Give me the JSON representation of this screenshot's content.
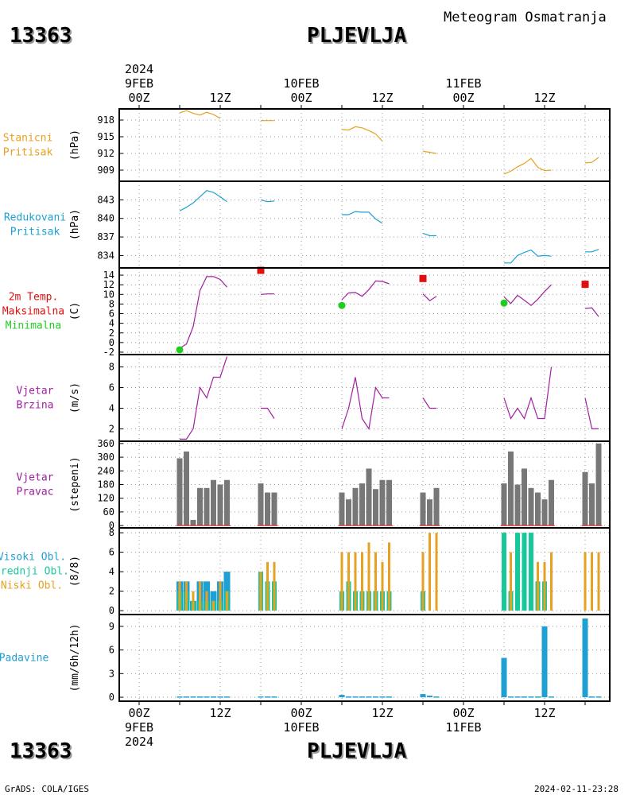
{
  "header": {
    "station_id": "13363",
    "station_name": "PLJEVLJA",
    "subtitle": "Meteogram Osmatranja"
  },
  "footer": {
    "left": "GrADS: COLA/IGES",
    "right": "2024-02-11-23:28"
  },
  "time_axis": {
    "top": {
      "year": "2024",
      "dates": [
        "9FEB",
        "10FEB",
        "11FEB"
      ],
      "hours": [
        "00Z",
        "12Z",
        "00Z",
        "12Z",
        "00Z",
        "12Z"
      ]
    },
    "bottom": {
      "year": "2024",
      "dates": [
        "9FEB",
        "10FEB",
        "11FEB"
      ],
      "hours": [
        "00Z",
        "12Z",
        "00Z",
        "12Z",
        "00Z",
        "12Z"
      ]
    }
  },
  "colors": {
    "orange": "#e6a022",
    "blue": "#1fa0d2",
    "red": "#e01010",
    "green": "#1fcc1f",
    "purple": "#a020a0",
    "gray": "#777777",
    "teal": "#17c99a",
    "frame": "#000000"
  },
  "chart_data": [
    {
      "id": "pressure",
      "type": "line",
      "label_lines": [
        "Stanicni",
        "Pritisak"
      ],
      "unit": "(hPa)",
      "ylim": [
        907,
        920
      ],
      "yticks": [
        909,
        912,
        915,
        918
      ],
      "series": [
        {
          "color": "orange",
          "segments": [
            [
              [
                6,
                919.3
              ],
              [
                7,
                919.7
              ],
              [
                8,
                919.2
              ],
              [
                9,
                918.9
              ],
              [
                10,
                919.4
              ],
              [
                11,
                919.0
              ],
              [
                12,
                918.3
              ]
            ],
            [
              [
                18,
                917.9
              ],
              [
                20,
                917.9
              ]
            ],
            [
              [
                30,
                916.3
              ],
              [
                31,
                916.2
              ],
              [
                32,
                916.8
              ],
              [
                33,
                916.6
              ],
              [
                34,
                916.1
              ],
              [
                35,
                915.5
              ],
              [
                36,
                914.2
              ]
            ],
            [
              [
                42,
                912.4
              ],
              [
                43,
                912.2
              ],
              [
                44,
                912.0
              ]
            ],
            [
              [
                54,
                908.3
              ],
              [
                55,
                908.8
              ],
              [
                56,
                909.6
              ],
              [
                57,
                910.2
              ],
              [
                58,
                911.1
              ],
              [
                59,
                909.5
              ],
              [
                60,
                908.9
              ],
              [
                61,
                909.0
              ]
            ],
            [
              [
                66,
                910.3
              ],
              [
                67,
                910.4
              ],
              [
                68,
                911.3
              ]
            ]
          ]
        }
      ]
    },
    {
      "id": "reduced_pressure",
      "type": "line",
      "label_lines": [
        "Redukovani",
        "Pritisak"
      ],
      "unit": "(hPa)",
      "ylim": [
        832,
        846
      ],
      "yticks": [
        834,
        837,
        840,
        843
      ],
      "series": [
        {
          "color": "blue",
          "segments": [
            [
              [
                6,
                841.2
              ],
              [
                7,
                841.8
              ],
              [
                8,
                842.5
              ],
              [
                10,
                844.5
              ],
              [
                11,
                844.2
              ],
              [
                12,
                843.5
              ],
              [
                13,
                842.7
              ]
            ],
            [
              [
                18,
                843.0
              ],
              [
                19,
                842.7
              ],
              [
                20,
                842.8
              ]
            ],
            [
              [
                30,
                840.6
              ],
              [
                31,
                840.6
              ],
              [
                32,
                841.1
              ],
              [
                33,
                841.0
              ],
              [
                34,
                841.0
              ],
              [
                35,
                839.9
              ],
              [
                36,
                839.2
              ]
            ],
            [
              [
                42,
                837.6
              ],
              [
                43,
                837.2
              ],
              [
                44,
                837.2
              ]
            ],
            [
              [
                54,
                832.8
              ],
              [
                55,
                832.8
              ],
              [
                56,
                834.0
              ],
              [
                57,
                834.5
              ],
              [
                58,
                834.9
              ],
              [
                59,
                833.9
              ],
              [
                60,
                834.0
              ],
              [
                61,
                833.9
              ]
            ],
            [
              [
                66,
                834.6
              ],
              [
                67,
                834.6
              ],
              [
                68,
                835.0
              ]
            ]
          ]
        }
      ]
    },
    {
      "id": "temperature",
      "type": "line",
      "label_lines": [
        "2m Temp.",
        "Maksimalna",
        "Minimalna"
      ],
      "label_colors": [
        "red",
        "red",
        "green"
      ],
      "unit": "(C)",
      "ylim": [
        -2.5,
        15.5
      ],
      "yticks": [
        -2,
        0,
        2,
        4,
        6,
        8,
        10,
        12,
        14
      ],
      "series": [
        {
          "color": "purple",
          "segments": [
            [
              [
                6,
                -1.2
              ],
              [
                7,
                -0.3
              ],
              [
                8,
                3.3
              ],
              [
                9,
                10.8
              ],
              [
                10,
                13.7
              ],
              [
                11,
                13.7
              ],
              [
                12,
                13.1
              ],
              [
                13,
                11.5
              ]
            ],
            [
              [
                18,
                10.0
              ],
              [
                19,
                10.1
              ],
              [
                20,
                10.1
              ]
            ],
            [
              [
                30,
                8.9
              ],
              [
                31,
                10.3
              ],
              [
                32,
                10.4
              ],
              [
                33,
                9.6
              ],
              [
                34,
                11.0
              ],
              [
                35,
                12.8
              ],
              [
                36,
                12.7
              ],
              [
                37,
                12.2
              ]
            ],
            [
              [
                42,
                10.1
              ],
              [
                43,
                8.7
              ],
              [
                44,
                9.6
              ]
            ],
            [
              [
                54,
                9.5
              ],
              [
                55,
                8.1
              ],
              [
                56,
                9.8
              ],
              [
                57,
                8.8
              ],
              [
                58,
                7.7
              ],
              [
                59,
                9.0
              ],
              [
                60,
                10.6
              ],
              [
                61,
                12.0
              ]
            ],
            [
              [
                66,
                7.1
              ],
              [
                67,
                7.2
              ],
              [
                68,
                5.4
              ]
            ]
          ]
        }
      ],
      "max_points": [
        [
          18,
          15.0
        ],
        [
          42,
          13.3
        ],
        [
          66,
          12.1
        ]
      ],
      "min_points": [
        [
          6,
          -1.5
        ],
        [
          30,
          7.7
        ],
        [
          54,
          8.2
        ]
      ]
    },
    {
      "id": "wind_speed",
      "type": "line",
      "label_lines": [
        "Vjetar",
        "Brzina"
      ],
      "unit": "(m/s)",
      "ylim": [
        0.8,
        9.2
      ],
      "yticks": [
        2,
        4,
        6,
        8
      ],
      "series": [
        {
          "color": "purple",
          "segments": [
            [
              [
                6,
                1
              ],
              [
                7,
                1
              ],
              [
                8,
                2
              ],
              [
                9,
                6
              ],
              [
                10,
                5
              ],
              [
                11,
                7
              ],
              [
                12,
                7
              ],
              [
                13,
                9
              ]
            ],
            [
              [
                18,
                4
              ],
              [
                19,
                4
              ],
              [
                20,
                3
              ]
            ],
            [
              [
                30,
                2
              ],
              [
                31,
                4
              ],
              [
                32,
                7
              ],
              [
                33,
                3
              ],
              [
                34,
                2
              ],
              [
                35,
                6
              ],
              [
                36,
                5
              ],
              [
                37,
                5
              ]
            ],
            [
              [
                42,
                5
              ],
              [
                43,
                4
              ],
              [
                44,
                4
              ]
            ],
            [
              [
                54,
                5
              ],
              [
                55,
                3
              ],
              [
                56,
                4
              ],
              [
                57,
                3
              ],
              [
                58,
                5
              ],
              [
                59,
                3
              ],
              [
                60,
                3
              ],
              [
                61,
                8
              ]
            ],
            [
              [
                66,
                5
              ],
              [
                67,
                2
              ],
              [
                68,
                2
              ]
            ]
          ]
        }
      ]
    },
    {
      "id": "wind_direction",
      "type": "bar",
      "label_lines": [
        "Vjetar",
        "Pravac"
      ],
      "unit": "(stepeni)",
      "ylim": [
        -10,
        370
      ],
      "yticks": [
        0,
        60,
        120,
        180,
        240,
        300,
        360
      ],
      "bars": [
        [
          6,
          295
        ],
        [
          7,
          325
        ],
        [
          8,
          25
        ],
        [
          9,
          165
        ],
        [
          10,
          165
        ],
        [
          11,
          200
        ],
        [
          12,
          180
        ],
        [
          13,
          200
        ],
        [
          18,
          185
        ],
        [
          19,
          145
        ],
        [
          20,
          145
        ],
        [
          30,
          145
        ],
        [
          31,
          115
        ],
        [
          32,
          165
        ],
        [
          33,
          185
        ],
        [
          34,
          250
        ],
        [
          35,
          160
        ],
        [
          36,
          200
        ],
        [
          37,
          200
        ],
        [
          42,
          145
        ],
        [
          43,
          115
        ],
        [
          44,
          165
        ],
        [
          54,
          185
        ],
        [
          55,
          325
        ],
        [
          56,
          180
        ],
        [
          57,
          250
        ],
        [
          58,
          165
        ],
        [
          59,
          145
        ],
        [
          60,
          115
        ],
        [
          61,
          200
        ],
        [
          66,
          235
        ],
        [
          67,
          185
        ],
        [
          68,
          360
        ]
      ]
    },
    {
      "id": "clouds",
      "type": "bar",
      "label_lines": [
        "Visoki Obl.",
        "Srednji Obl.",
        "Niski Obl."
      ],
      "label_colors": [
        "blue",
        "teal",
        "orange"
      ],
      "unit": "(8/8)",
      "ylim": [
        -0.4,
        8.5
      ],
      "yticks": [
        0,
        2,
        4,
        6,
        8
      ],
      "groups": [
        [
          6,
          3,
          2,
          3
        ],
        [
          7,
          3,
          2,
          3
        ],
        [
          8,
          1,
          1,
          2
        ],
        [
          9,
          3,
          1,
          3
        ],
        [
          10,
          3,
          1,
          2
        ],
        [
          11,
          2,
          1,
          1
        ],
        [
          12,
          3,
          1,
          3
        ],
        [
          13,
          4,
          2,
          2
        ],
        [
          18,
          0,
          4,
          4
        ],
        [
          19,
          0,
          3,
          5
        ],
        [
          20,
          0,
          3,
          5
        ],
        [
          30,
          0,
          2,
          6
        ],
        [
          31,
          0,
          3,
          6
        ],
        [
          32,
          0,
          2,
          6
        ],
        [
          33,
          0,
          2,
          6
        ],
        [
          34,
          0,
          2,
          7
        ],
        [
          35,
          0,
          2,
          6
        ],
        [
          36,
          0,
          2,
          5
        ],
        [
          37,
          0,
          2,
          7
        ],
        [
          42,
          0,
          2,
          6
        ],
        [
          43,
          0,
          0,
          8
        ],
        [
          44,
          0,
          0,
          8
        ],
        [
          54,
          0,
          8,
          0
        ],
        [
          55,
          0,
          2,
          6
        ],
        [
          56,
          0,
          8,
          0
        ],
        [
          57,
          0,
          8,
          0
        ],
        [
          58,
          0,
          8,
          0
        ],
        [
          59,
          0,
          3,
          5
        ],
        [
          60,
          0,
          3,
          5
        ],
        [
          61,
          0,
          0,
          6
        ],
        [
          66,
          0,
          0,
          6
        ],
        [
          67,
          0,
          0,
          6
        ],
        [
          68,
          0,
          0,
          6
        ]
      ]
    },
    {
      "id": "precipitation",
      "type": "bar",
      "label_lines": [
        "Padavine"
      ],
      "unit": "(mm/6h/12h)",
      "ylim": [
        -0.5,
        10.5
      ],
      "yticks": [
        0,
        3,
        6,
        9
      ],
      "bars": [
        [
          6,
          0.1
        ],
        [
          7,
          0.1
        ],
        [
          8,
          0.1
        ],
        [
          9,
          0.1
        ],
        [
          10,
          0.1
        ],
        [
          11,
          0.1
        ],
        [
          12,
          0.1
        ],
        [
          13,
          0.1
        ],
        [
          18,
          0.1
        ],
        [
          19,
          0.1
        ],
        [
          20,
          0.1
        ],
        [
          30,
          0.3
        ],
        [
          31,
          0.1
        ],
        [
          32,
          0.1
        ],
        [
          33,
          0.1
        ],
        [
          34,
          0.1
        ],
        [
          35,
          0.1
        ],
        [
          36,
          0.1
        ],
        [
          37,
          0.1
        ],
        [
          42,
          0.4
        ],
        [
          43,
          0.2
        ],
        [
          44,
          0.1
        ],
        [
          54,
          5.0
        ],
        [
          55,
          0.1
        ],
        [
          56,
          0.1
        ],
        [
          57,
          0.1
        ],
        [
          58,
          0.1
        ],
        [
          59,
          0.1
        ],
        [
          60,
          9.0
        ],
        [
          61,
          0.1
        ],
        [
          66,
          10.0
        ],
        [
          67,
          0.1
        ],
        [
          68,
          0.1
        ]
      ]
    }
  ]
}
